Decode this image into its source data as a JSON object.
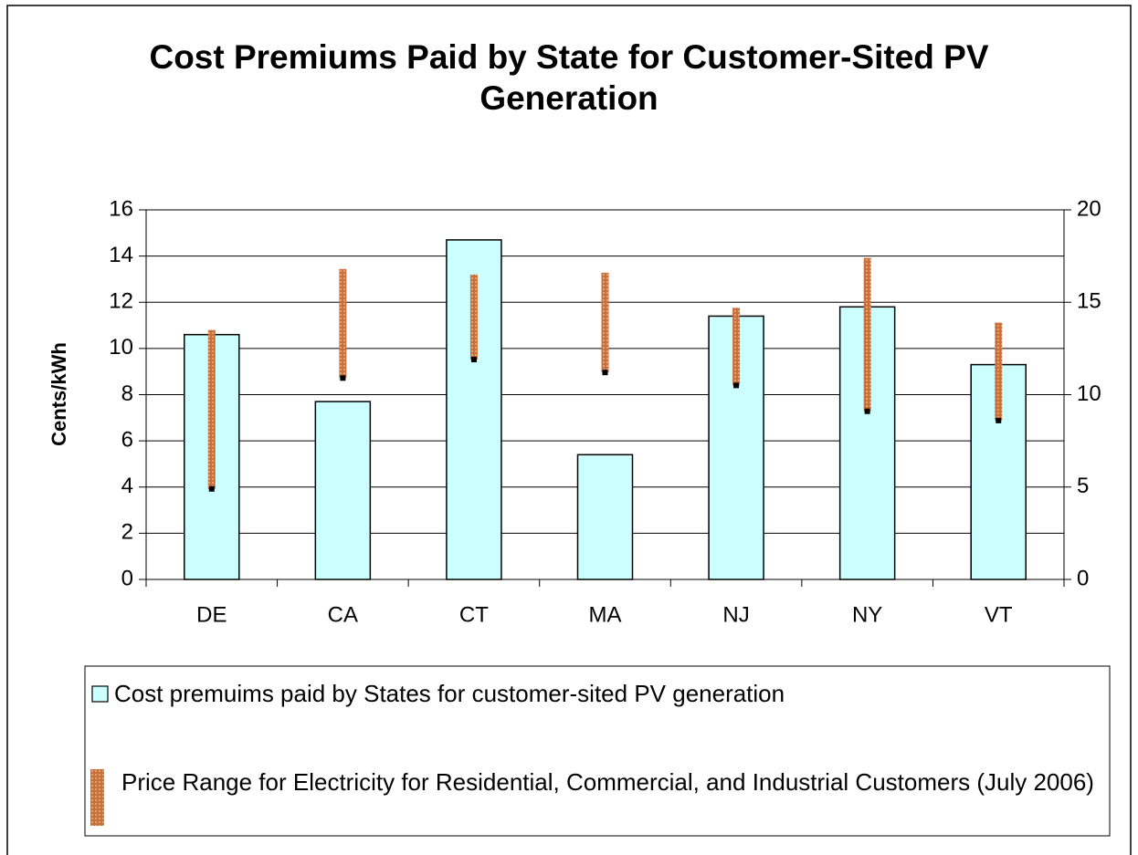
{
  "chart_data": {
    "type": "bar",
    "title": "Cost Premiums Paid by State for Customer-Sited PV Generation",
    "y_label": "Cents/kWh",
    "categories": [
      "DE",
      "CA",
      "CT",
      "MA",
      "NJ",
      "NY",
      "VT"
    ],
    "series": [
      {
        "name": "Cost premuims paid by States for customer-sited PV generation",
        "color": "#ccffff",
        "values": [
          10.6,
          7.7,
          14.7,
          5.4,
          11.4,
          11.8,
          9.3
        ]
      },
      {
        "name": "Price Range for Electricity for Residential, Commercial, and Industrial Customers (July 2006)",
        "color": "#c8703c",
        "axis": "y2",
        "low": [
          4.9,
          10.9,
          11.9,
          11.2,
          10.5,
          9.1,
          8.6
        ],
        "high": [
          13.5,
          16.8,
          16.5,
          16.6,
          14.7,
          17.4,
          13.9
        ]
      }
    ],
    "ylim": [
      0,
      16
    ],
    "yticks": [
      0,
      2,
      4,
      6,
      8,
      10,
      12,
      14,
      16
    ],
    "y2lim": [
      0,
      20
    ],
    "y2ticks": [
      0,
      5,
      10,
      15,
      20
    ],
    "grid": true
  }
}
